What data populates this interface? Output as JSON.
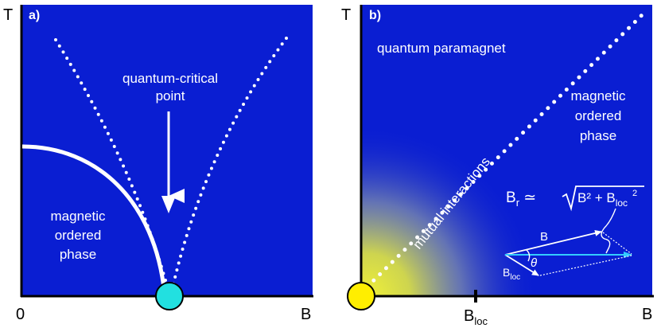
{
  "colors": {
    "panel_blue": "#0a1ed2",
    "curve_white": "#ffffff",
    "qcp_marker": "#22e0e0",
    "origin_marker": "#ffee00",
    "cyan_vector": "#33ccff",
    "glow_yellow": "#e8e83a"
  },
  "panel_a": {
    "tag": "a)",
    "y_axis_label": "T",
    "x_axis_label": "B",
    "x_origin_label": "0",
    "qcp_label_line1": "quantum-critical",
    "qcp_label_line2": "point",
    "phase_line1": "magnetic",
    "phase_line2": "ordered",
    "phase_line3": "phase",
    "arrow_icon": "down-arrow-icon",
    "qcp_marker_icon": "cyan-circle-icon"
  },
  "panel_b": {
    "tag": "b)",
    "y_axis_label": "T",
    "x_axis_label": "B",
    "tick_label_main": "B",
    "tick_label_sub": "loc",
    "paramagnet_label": "quantum paramagnet",
    "phase_line1": "magnetic",
    "phase_line2": "ordered",
    "phase_line3": "phase",
    "crossover_label": "mutual interactions",
    "formula": {
      "lhs_main": "B",
      "lhs_sub": "r",
      "rel": " ≃ ",
      "term1": "B² + B",
      "term2_sub": "loc",
      "term2_sup": "2"
    },
    "vector_B_label": "B",
    "vector_Bloc_main": "B",
    "vector_Bloc_sub": "loc",
    "angle_label": "θ",
    "origin_marker_icon": "yellow-circle-icon"
  }
}
